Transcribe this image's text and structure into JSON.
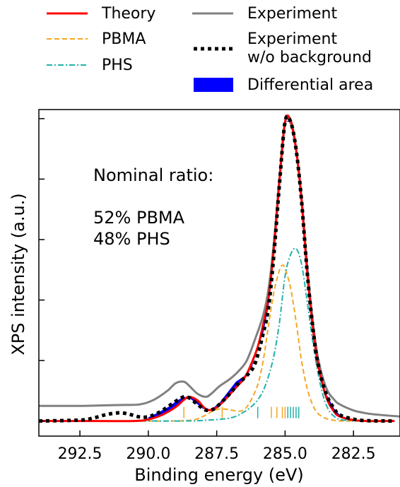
{
  "legend": {
    "theory": "Theory",
    "pbma": "PBMA",
    "phs": "PHS",
    "experiment": "Experiment",
    "experiment_nobg": "Experiment\nw/o background",
    "diff_area": "Differential area"
  },
  "colors": {
    "theory": "#ff0000",
    "pbma": "#f5a623",
    "phs": "#20b2aa",
    "experiment": "#808080",
    "experiment_nobg": "#000000",
    "diff_area": "#0000ff"
  },
  "annotation": {
    "line1": "Nominal ratio:",
    "line2": "52% PBMA",
    "line3": "48% PHS"
  },
  "chart_data": {
    "type": "line",
    "xlabel": "Binding energy (eV)",
    "ylabel": "XPS intensity (a.u.)",
    "xlim": [
      294.0,
      280.8
    ],
    "ylim": [
      -0.05,
      1.03
    ],
    "x_reversed": true,
    "x_ticks": [
      292.5,
      290.0,
      287.5,
      285.0,
      282.5
    ],
    "x_tick_labels": [
      "292.5",
      "290.0",
      "287.5",
      "285.0",
      "282.5"
    ],
    "y_ticks": [
      0.0,
      0.2,
      0.4,
      0.6,
      0.8,
      1.0
    ],
    "y_tick_labels": [],
    "grid": false,
    "legend_position": "above plot",
    "series": [
      {
        "name": "Theory",
        "x": [
          294.0,
          292.0,
          290.5,
          290.0,
          289.5,
          289.0,
          288.7,
          288.5,
          288.2,
          288.0,
          287.8,
          287.5,
          287.2,
          287.0,
          286.7,
          286.5,
          286.3,
          286.0,
          285.8,
          285.6,
          285.4,
          285.2,
          285.0,
          284.8,
          284.6,
          284.4,
          284.2,
          284.0,
          283.8,
          283.5,
          283.2,
          283.0,
          282.5,
          282.0,
          281.0
        ],
        "y": [
          0.0,
          0.0,
          0.0,
          0.005,
          0.02,
          0.046,
          0.07,
          0.08,
          0.068,
          0.048,
          0.036,
          0.045,
          0.07,
          0.09,
          0.12,
          0.14,
          0.175,
          0.245,
          0.32,
          0.41,
          0.58,
          0.8,
          0.99,
          0.995,
          0.9,
          0.73,
          0.5,
          0.32,
          0.19,
          0.08,
          0.03,
          0.015,
          0.003,
          0.0,
          0.0
        ]
      },
      {
        "name": "PBMA",
        "x": [
          294.0,
          290.0,
          288.5,
          288.0,
          287.7,
          287.5,
          287.3,
          287.0,
          286.7,
          286.5,
          286.3,
          286.0,
          285.8,
          285.6,
          285.4,
          285.2,
          285.1,
          285.0,
          284.8,
          284.6,
          284.4,
          284.2,
          284.0,
          283.8,
          283.5,
          283.2,
          283.0,
          282.5
        ],
        "y": [
          0.0,
          0.0,
          0.002,
          0.015,
          0.03,
          0.038,
          0.04,
          0.037,
          0.032,
          0.038,
          0.06,
          0.12,
          0.2,
          0.32,
          0.43,
          0.5,
          0.515,
          0.505,
          0.44,
          0.33,
          0.2,
          0.11,
          0.055,
          0.025,
          0.008,
          0.002,
          0.0,
          0.0
        ]
      },
      {
        "name": "PHS",
        "x": [
          294.0,
          289.0,
          288.0,
          287.0,
          286.5,
          286.2,
          286.0,
          285.8,
          285.6,
          285.4,
          285.2,
          285.0,
          284.8,
          284.6,
          284.4,
          284.2,
          284.0,
          283.8,
          283.6,
          283.4,
          283.2,
          283.0,
          282.5
        ],
        "y": [
          0.0,
          0.0,
          0.002,
          0.01,
          0.03,
          0.05,
          0.07,
          0.1,
          0.15,
          0.22,
          0.33,
          0.48,
          0.55,
          0.57,
          0.52,
          0.4,
          0.27,
          0.16,
          0.08,
          0.035,
          0.015,
          0.005,
          0.0
        ]
      },
      {
        "name": "Experiment",
        "x": [
          294.0,
          292.5,
          291.5,
          291.0,
          290.3,
          289.8,
          289.3,
          289.0,
          288.7,
          288.5,
          288.2,
          287.9,
          287.7,
          287.4,
          287.0,
          286.7,
          286.4,
          286.1,
          285.8,
          285.6,
          285.4,
          285.2,
          285.0,
          284.8,
          284.6,
          284.4,
          284.2,
          284.0,
          283.8,
          283.5,
          283.2,
          283.0,
          282.5,
          282.0,
          281.5,
          280.8
        ],
        "y": [
          0.05,
          0.05,
          0.052,
          0.053,
          0.055,
          0.07,
          0.1,
          0.125,
          0.13,
          0.116,
          0.09,
          0.08,
          0.09,
          0.115,
          0.14,
          0.165,
          0.2,
          0.27,
          0.35,
          0.44,
          0.6,
          0.81,
          0.99,
          0.985,
          0.9,
          0.74,
          0.52,
          0.34,
          0.21,
          0.11,
          0.07,
          0.055,
          0.035,
          0.025,
          0.02,
          0.015
        ]
      },
      {
        "name": "Experiment\nw/o background",
        "x": [
          294.0,
          292.5,
          292.0,
          291.5,
          291.0,
          290.6,
          290.2,
          289.8,
          289.4,
          289.0,
          288.7,
          288.5,
          288.2,
          287.9,
          287.6,
          287.3,
          287.0,
          286.7,
          286.4,
          286.1,
          285.8,
          285.6,
          285.4,
          285.2,
          285.0,
          284.8,
          284.6,
          284.4,
          284.2,
          284.0,
          283.8,
          283.5,
          283.2,
          283.0,
          282.5,
          282.0,
          281.0
        ],
        "y": [
          0.0,
          0.003,
          0.01,
          0.022,
          0.027,
          0.02,
          0.012,
          0.02,
          0.04,
          0.065,
          0.08,
          0.076,
          0.055,
          0.036,
          0.04,
          0.064,
          0.092,
          0.125,
          0.15,
          0.19,
          0.29,
          0.38,
          0.56,
          0.79,
          0.99,
          0.99,
          0.9,
          0.73,
          0.5,
          0.32,
          0.19,
          0.09,
          0.04,
          0.02,
          0.006,
          0.001,
          0.0
        ]
      }
    ],
    "differential_area": {
      "name": "Differential area",
      "x": [
        290.0,
        289.6,
        289.2,
        289.0,
        288.7,
        288.5,
        288.2,
        288.0,
        287.7,
        287.4,
        287.1,
        286.8,
        286.5,
        286.2,
        286.0,
        285.8,
        285.6,
        285.4,
        285.2,
        285.0,
        284.8,
        284.5,
        284.2,
        284.0,
        283.8,
        283.5,
        283.2,
        283.0
      ],
      "theory": [
        0.005,
        0.015,
        0.038,
        0.046,
        0.07,
        0.08,
        0.068,
        0.048,
        0.036,
        0.048,
        0.078,
        0.11,
        0.138,
        0.18,
        0.245,
        0.32,
        0.41,
        0.58,
        0.8,
        0.99,
        0.995,
        0.82,
        0.5,
        0.32,
        0.19,
        0.08,
        0.03,
        0.015
      ],
      "experiment": [
        0.012,
        0.03,
        0.05,
        0.065,
        0.08,
        0.076,
        0.055,
        0.04,
        0.038,
        0.06,
        0.095,
        0.13,
        0.148,
        0.185,
        0.245,
        0.29,
        0.38,
        0.56,
        0.79,
        0.99,
        0.99,
        0.82,
        0.5,
        0.32,
        0.19,
        0.09,
        0.04,
        0.02
      ]
    },
    "peak_markers": {
      "pbma": [
        288.7,
        287.3,
        285.5,
        285.3,
        285.1,
        285.0
      ],
      "phs": [
        286.0,
        284.9,
        284.8,
        284.7,
        284.6,
        284.5
      ]
    }
  }
}
